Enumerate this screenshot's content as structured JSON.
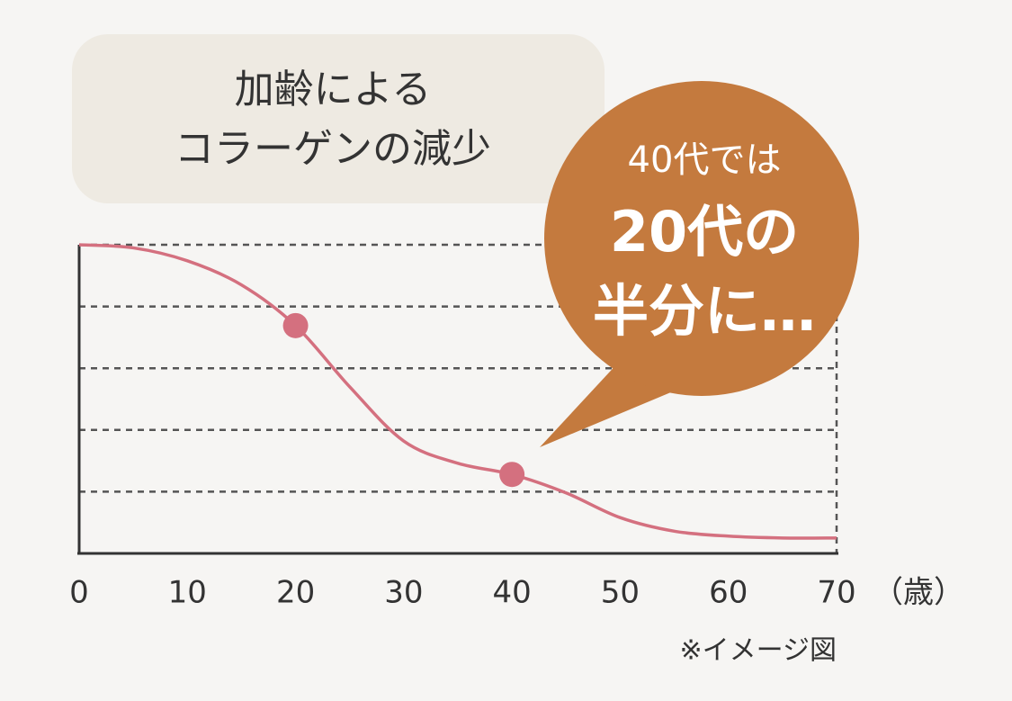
{
  "chart_data": {
    "type": "line",
    "title": [
      "加齢による",
      "コラーゲンの減少"
    ],
    "callout": [
      "40代では",
      "20代の",
      "半分に…"
    ],
    "x_unit": "（歳）",
    "note": "※イメージ図",
    "x": [
      0,
      5,
      10,
      15,
      20,
      25,
      30,
      35,
      40,
      45,
      50,
      55,
      60,
      65,
      70
    ],
    "series": [
      {
        "color": "#d4707f",
        "values": [
          5.0,
          4.95,
          4.74,
          4.35,
          3.69,
          2.7,
          1.82,
          1.46,
          1.28,
          0.98,
          0.58,
          0.36,
          0.28,
          0.25,
          0.25
        ]
      }
    ],
    "highlight_points": {
      "x": [
        20,
        40
      ],
      "values": [
        3.69,
        1.28
      ],
      "color": "#d4707f"
    },
    "xlim": [
      0,
      70
    ],
    "xticks": [
      0,
      10,
      20,
      30,
      40,
      50,
      60,
      70
    ],
    "ylim": [
      0,
      5
    ],
    "yticks": [
      1,
      2,
      3,
      4,
      5
    ],
    "grid": true
  }
}
